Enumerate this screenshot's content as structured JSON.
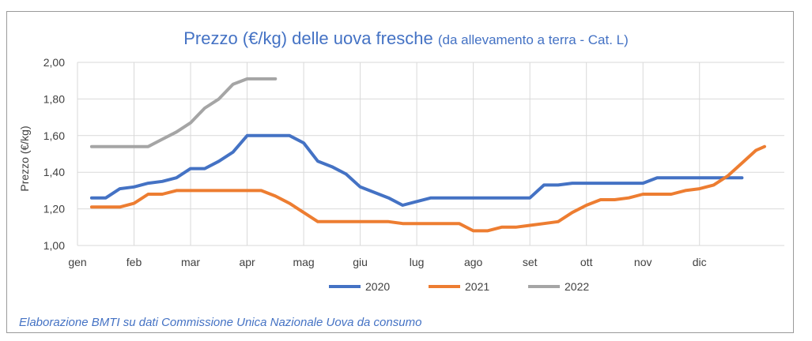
{
  "chart_data": {
    "type": "line",
    "title": "Prezzo (€/kg) delle uova fresche",
    "subtitle": "(da allevamento a terra - Cat. L)",
    "xlabel": "",
    "ylabel": "Prezzo (€/kg)",
    "ylim": [
      1.0,
      2.0
    ],
    "y_ticks": [
      "1,00",
      "1,20",
      "1,40",
      "1,60",
      "1,80",
      "2,00"
    ],
    "categories": [
      "gen",
      "feb",
      "mar",
      "apr",
      "mag",
      "giu",
      "lug",
      "ago",
      "set",
      "ott",
      "nov",
      "dic"
    ],
    "x_unit": "month index (gen = 0 … dic = 11)",
    "grid": true,
    "legend_position": "bottom",
    "series": [
      {
        "name": "2020",
        "color": "#4472c4",
        "points": [
          [
            0.25,
            1.26
          ],
          [
            0.5,
            1.26
          ],
          [
            0.75,
            1.31
          ],
          [
            1.0,
            1.32
          ],
          [
            1.25,
            1.34
          ],
          [
            1.5,
            1.35
          ],
          [
            1.75,
            1.37
          ],
          [
            2.0,
            1.42
          ],
          [
            2.25,
            1.42
          ],
          [
            2.5,
            1.46
          ],
          [
            2.75,
            1.51
          ],
          [
            3.0,
            1.6
          ],
          [
            3.25,
            1.6
          ],
          [
            3.5,
            1.6
          ],
          [
            3.75,
            1.6
          ],
          [
            4.0,
            1.56
          ],
          [
            4.25,
            1.46
          ],
          [
            4.5,
            1.43
          ],
          [
            4.75,
            1.39
          ],
          [
            5.0,
            1.32
          ],
          [
            5.25,
            1.29
          ],
          [
            5.5,
            1.26
          ],
          [
            5.75,
            1.22
          ],
          [
            6.0,
            1.24
          ],
          [
            6.25,
            1.26
          ],
          [
            6.5,
            1.26
          ],
          [
            6.75,
            1.26
          ],
          [
            7.0,
            1.26
          ],
          [
            7.25,
            1.26
          ],
          [
            7.5,
            1.26
          ],
          [
            7.75,
            1.26
          ],
          [
            8.0,
            1.26
          ],
          [
            8.25,
            1.33
          ],
          [
            8.5,
            1.33
          ],
          [
            8.75,
            1.34
          ],
          [
            9.0,
            1.34
          ],
          [
            9.25,
            1.34
          ],
          [
            9.5,
            1.34
          ],
          [
            9.75,
            1.34
          ],
          [
            10.0,
            1.34
          ],
          [
            10.25,
            1.37
          ],
          [
            10.5,
            1.37
          ],
          [
            10.75,
            1.37
          ],
          [
            11.0,
            1.37
          ],
          [
            11.25,
            1.37
          ],
          [
            11.5,
            1.37
          ],
          [
            11.75,
            1.37
          ]
        ]
      },
      {
        "name": "2021",
        "color": "#ed7d31",
        "points": [
          [
            0.25,
            1.21
          ],
          [
            0.5,
            1.21
          ],
          [
            0.75,
            1.21
          ],
          [
            1.0,
            1.23
          ],
          [
            1.25,
            1.28
          ],
          [
            1.5,
            1.28
          ],
          [
            1.75,
            1.3
          ],
          [
            2.0,
            1.3
          ],
          [
            2.25,
            1.3
          ],
          [
            2.5,
            1.3
          ],
          [
            2.75,
            1.3
          ],
          [
            3.0,
            1.3
          ],
          [
            3.25,
            1.3
          ],
          [
            3.5,
            1.27
          ],
          [
            3.75,
            1.23
          ],
          [
            4.0,
            1.18
          ],
          [
            4.25,
            1.13
          ],
          [
            4.5,
            1.13
          ],
          [
            4.75,
            1.13
          ],
          [
            5.0,
            1.13
          ],
          [
            5.25,
            1.13
          ],
          [
            5.5,
            1.13
          ],
          [
            5.75,
            1.12
          ],
          [
            6.0,
            1.12
          ],
          [
            6.25,
            1.12
          ],
          [
            6.5,
            1.12
          ],
          [
            6.75,
            1.12
          ],
          [
            7.0,
            1.08
          ],
          [
            7.25,
            1.08
          ],
          [
            7.5,
            1.1
          ],
          [
            7.75,
            1.1
          ],
          [
            8.0,
            1.11
          ],
          [
            8.25,
            1.12
          ],
          [
            8.5,
            1.13
          ],
          [
            8.75,
            1.18
          ],
          [
            9.0,
            1.22
          ],
          [
            9.25,
            1.25
          ],
          [
            9.5,
            1.25
          ],
          [
            9.75,
            1.26
          ],
          [
            10.0,
            1.28
          ],
          [
            10.25,
            1.28
          ],
          [
            10.5,
            1.28
          ],
          [
            10.75,
            1.3
          ],
          [
            11.0,
            1.31
          ],
          [
            11.25,
            1.33
          ],
          [
            11.5,
            1.38
          ],
          [
            11.75,
            1.45
          ],
          [
            12.0,
            1.52
          ],
          [
            12.15,
            1.54
          ]
        ]
      },
      {
        "name": "2022",
        "color": "#a5a5a5",
        "points": [
          [
            0.25,
            1.54
          ],
          [
            0.5,
            1.54
          ],
          [
            0.75,
            1.54
          ],
          [
            1.0,
            1.54
          ],
          [
            1.25,
            1.54
          ],
          [
            1.5,
            1.58
          ],
          [
            1.75,
            1.62
          ],
          [
            2.0,
            1.67
          ],
          [
            2.25,
            1.75
          ],
          [
            2.5,
            1.8
          ],
          [
            2.75,
            1.88
          ],
          [
            3.0,
            1.91
          ],
          [
            3.25,
            1.91
          ],
          [
            3.5,
            1.91
          ]
        ]
      }
    ]
  },
  "source": "Elaborazione BMTI su dati Commissione Unica Nazionale Uova da consumo"
}
